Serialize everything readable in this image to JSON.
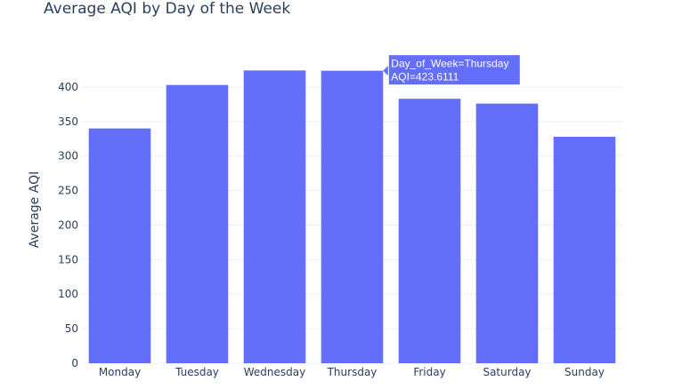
{
  "chart_data": {
    "type": "bar",
    "title": "Average AQI by Day of the Week",
    "xlabel": "",
    "ylabel": "Average AQI",
    "categories": [
      "Monday",
      "Tuesday",
      "Wednesday",
      "Thursday",
      "Friday",
      "Saturday",
      "Sunday"
    ],
    "values": [
      340,
      403,
      424,
      423.6111,
      383,
      376,
      328
    ],
    "ylim": [
      0,
      445
    ],
    "yticks": [
      "0",
      "50",
      "100",
      "150",
      "200",
      "250",
      "300",
      "350",
      "400"
    ],
    "grid": true,
    "bar_color": "#636efa",
    "hover": {
      "category_index": 3,
      "line1": "Day_of_Week=Thursday",
      "line2": "AQI=423.6111"
    }
  }
}
